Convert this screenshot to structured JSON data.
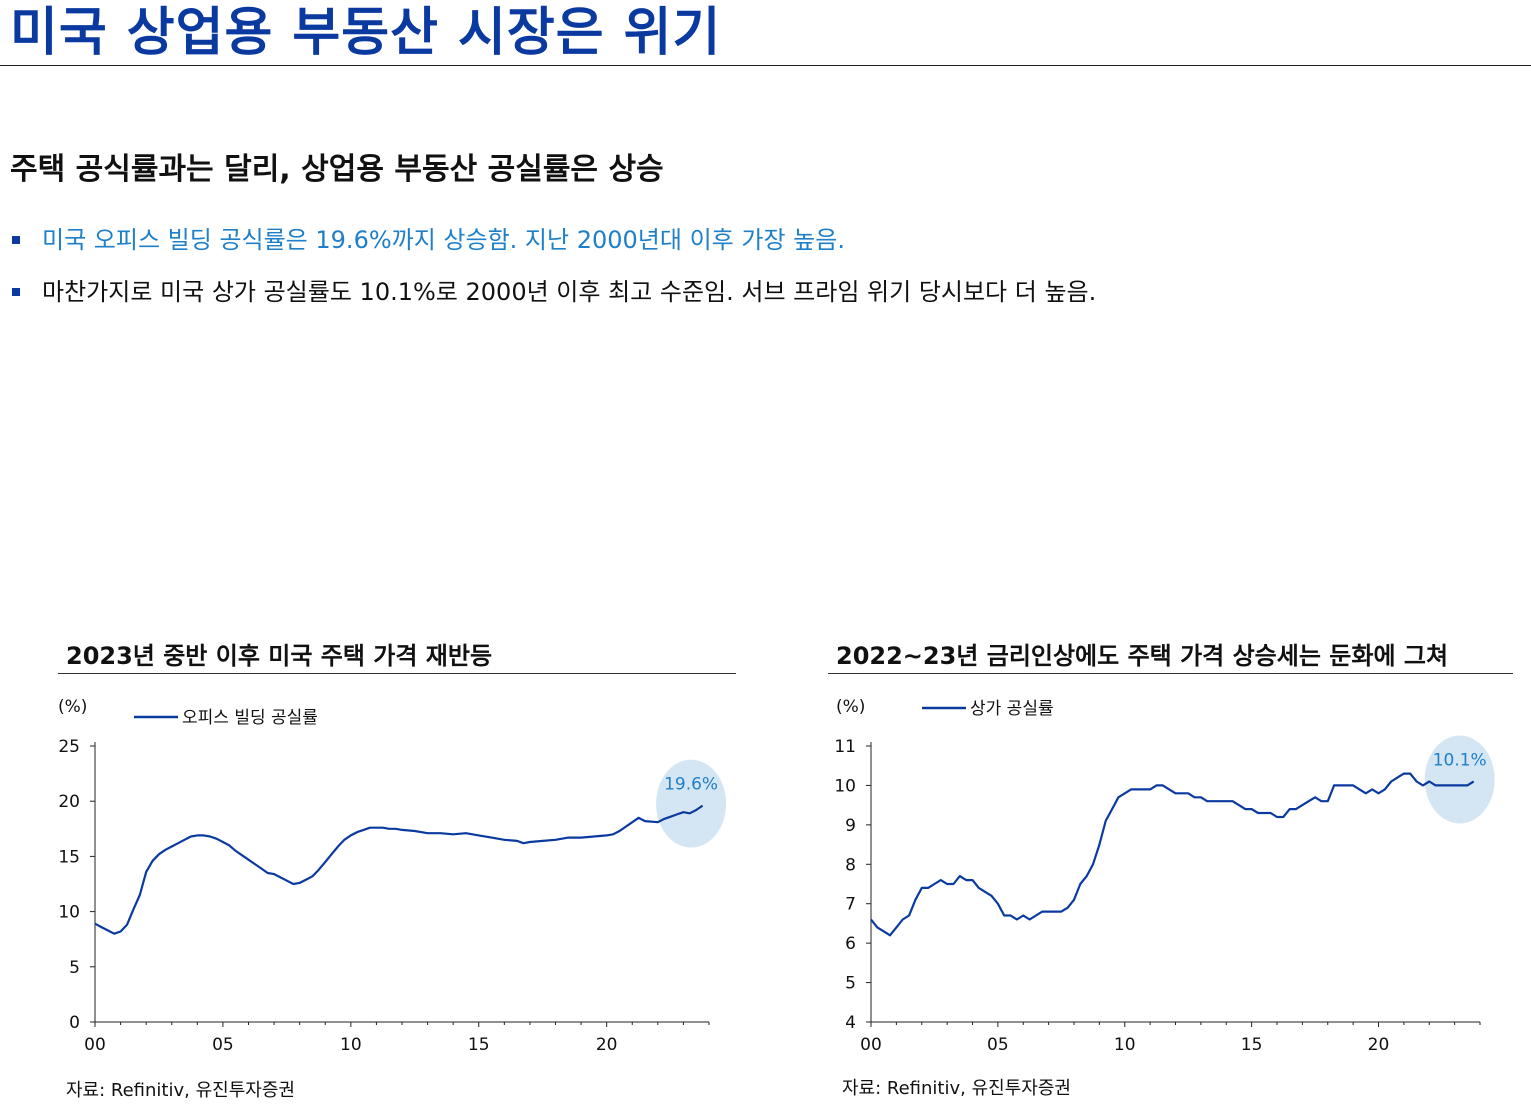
{
  "page": {
    "title": "미국 상업용 부동산 시장은 위기",
    "headline": "주택 공식률과는 달리, 상업용 부동산 공실률은 상승",
    "bullets": [
      {
        "text": "미국 오피스 빌딩 공식률은 19.6%까지 상승함. 지난 2000년대 이후 가장 높음.",
        "color": "#1f7fc8"
      },
      {
        "text": "마찬가지로 미국 상가 공실률도 10.1%로 2000년 이후 최고 수준임. 서브 프라임 위기 당시보다 더 높음.",
        "color": "#111111"
      }
    ]
  },
  "colors": {
    "title": "#0a3aa0",
    "line": "#0a3aa0",
    "highlight_fill": "#cfe3f3",
    "highlight_text": "#1f7fc8"
  },
  "chart_data": [
    {
      "type": "line",
      "title": "2023년 중반 이후 미국 주택 가격 재반등",
      "ylabel": "(%)",
      "xlabel": "",
      "xlim": [
        0,
        24
      ],
      "ylim": [
        0,
        25
      ],
      "xticks": [
        0,
        5,
        10,
        15,
        20
      ],
      "xtick_labels": [
        "00",
        "05",
        "10",
        "15",
        "20"
      ],
      "yticks": [
        0,
        5,
        10,
        15,
        20,
        25
      ],
      "legend": "top-left",
      "highlight": {
        "x": 23.3,
        "y": 19.6,
        "label": "19.6%"
      },
      "source": "자료: Refinitiv, 유진투자증권",
      "series": [
        {
          "name": "오피스 빌딩 공실률",
          "points": [
            [
              0.0,
              8.9
            ],
            [
              0.25,
              8.6
            ],
            [
              0.5,
              8.3
            ],
            [
              0.75,
              8.0
            ],
            [
              1.0,
              8.2
            ],
            [
              1.25,
              8.8
            ],
            [
              1.5,
              10.2
            ],
            [
              1.75,
              11.5
            ],
            [
              2.0,
              13.6
            ],
            [
              2.25,
              14.6
            ],
            [
              2.5,
              15.2
            ],
            [
              2.75,
              15.6
            ],
            [
              3.0,
              15.9
            ],
            [
              3.25,
              16.2
            ],
            [
              3.5,
              16.5
            ],
            [
              3.75,
              16.8
            ],
            [
              4.0,
              16.9
            ],
            [
              4.25,
              16.9
            ],
            [
              4.5,
              16.8
            ],
            [
              4.75,
              16.6
            ],
            [
              5.0,
              16.3
            ],
            [
              5.25,
              16.0
            ],
            [
              5.5,
              15.5
            ],
            [
              5.75,
              15.1
            ],
            [
              6.0,
              14.7
            ],
            [
              6.25,
              14.3
            ],
            [
              6.5,
              13.9
            ],
            [
              6.75,
              13.5
            ],
            [
              7.0,
              13.4
            ],
            [
              7.25,
              13.1
            ],
            [
              7.5,
              12.8
            ],
            [
              7.75,
              12.5
            ],
            [
              8.0,
              12.6
            ],
            [
              8.25,
              12.9
            ],
            [
              8.5,
              13.2
            ],
            [
              8.75,
              13.8
            ],
            [
              9.0,
              14.5
            ],
            [
              9.25,
              15.2
            ],
            [
              9.5,
              15.9
            ],
            [
              9.75,
              16.5
            ],
            [
              10.0,
              16.9
            ],
            [
              10.25,
              17.2
            ],
            [
              10.5,
              17.4
            ],
            [
              10.75,
              17.6
            ],
            [
              11.0,
              17.6
            ],
            [
              11.25,
              17.6
            ],
            [
              11.5,
              17.5
            ],
            [
              11.75,
              17.5
            ],
            [
              12.0,
              17.4
            ],
            [
              12.5,
              17.3
            ],
            [
              13.0,
              17.1
            ],
            [
              13.5,
              17.1
            ],
            [
              14.0,
              17.0
            ],
            [
              14.5,
              17.1
            ],
            [
              15.0,
              16.9
            ],
            [
              15.5,
              16.7
            ],
            [
              16.0,
              16.5
            ],
            [
              16.5,
              16.4
            ],
            [
              16.75,
              16.2
            ],
            [
              17.0,
              16.3
            ],
            [
              17.5,
              16.4
            ],
            [
              18.0,
              16.5
            ],
            [
              18.5,
              16.7
            ],
            [
              19.0,
              16.7
            ],
            [
              19.5,
              16.8
            ],
            [
              20.0,
              16.9
            ],
            [
              20.25,
              17.0
            ],
            [
              20.5,
              17.3
            ],
            [
              20.75,
              17.7
            ],
            [
              21.0,
              18.1
            ],
            [
              21.25,
              18.5
            ],
            [
              21.5,
              18.2
            ],
            [
              22.0,
              18.1
            ],
            [
              22.25,
              18.4
            ],
            [
              22.5,
              18.6
            ],
            [
              22.75,
              18.8
            ],
            [
              23.0,
              19.0
            ],
            [
              23.25,
              18.9
            ],
            [
              23.5,
              19.2
            ],
            [
              23.75,
              19.6
            ]
          ]
        }
      ]
    },
    {
      "type": "line",
      "title": "2022~23년 금리인상에도 주택 가격 상승세는 둔화에 그쳐",
      "ylabel": "(%)",
      "xlabel": "",
      "xlim": [
        0,
        24
      ],
      "ylim": [
        4,
        11
      ],
      "xticks": [
        0,
        5,
        10,
        15,
        20
      ],
      "xtick_labels": [
        "00",
        "05",
        "10",
        "15",
        "20"
      ],
      "yticks": [
        4,
        5,
        6,
        7,
        8,
        9,
        10,
        11
      ],
      "legend": "top-left",
      "highlight": {
        "x": 23.2,
        "y": 10.1,
        "label": "10.1%"
      },
      "source": "자료: Refinitiv, 유진투자증권",
      "series": [
        {
          "name": "상가 공실률",
          "points": [
            [
              0.0,
              6.6
            ],
            [
              0.25,
              6.4
            ],
            [
              0.5,
              6.3
            ],
            [
              0.75,
              6.2
            ],
            [
              1.0,
              6.4
            ],
            [
              1.25,
              6.6
            ],
            [
              1.5,
              6.7
            ],
            [
              1.75,
              7.1
            ],
            [
              2.0,
              7.4
            ],
            [
              2.25,
              7.4
            ],
            [
              2.5,
              7.5
            ],
            [
              2.75,
              7.6
            ],
            [
              3.0,
              7.5
            ],
            [
              3.25,
              7.5
            ],
            [
              3.5,
              7.7
            ],
            [
              3.75,
              7.6
            ],
            [
              4.0,
              7.6
            ],
            [
              4.25,
              7.4
            ],
            [
              4.5,
              7.3
            ],
            [
              4.75,
              7.2
            ],
            [
              5.0,
              7.0
            ],
            [
              5.25,
              6.7
            ],
            [
              5.5,
              6.7
            ],
            [
              5.75,
              6.6
            ],
            [
              6.0,
              6.7
            ],
            [
              6.25,
              6.6
            ],
            [
              6.5,
              6.7
            ],
            [
              6.75,
              6.8
            ],
            [
              7.0,
              6.8
            ],
            [
              7.5,
              6.8
            ],
            [
              7.75,
              6.9
            ],
            [
              8.0,
              7.1
            ],
            [
              8.25,
              7.5
            ],
            [
              8.5,
              7.7
            ],
            [
              8.75,
              8.0
            ],
            [
              9.0,
              8.5
            ],
            [
              9.25,
              9.1
            ],
            [
              9.5,
              9.4
            ],
            [
              9.75,
              9.7
            ],
            [
              10.0,
              9.8
            ],
            [
              10.25,
              9.9
            ],
            [
              10.5,
              9.9
            ],
            [
              11.0,
              9.9
            ],
            [
              11.25,
              10.0
            ],
            [
              11.5,
              10.0
            ],
            [
              11.75,
              9.9
            ],
            [
              12.0,
              9.8
            ],
            [
              12.5,
              9.8
            ],
            [
              12.75,
              9.7
            ],
            [
              13.0,
              9.7
            ],
            [
              13.25,
              9.6
            ],
            [
              14.0,
              9.6
            ],
            [
              14.25,
              9.6
            ],
            [
              14.5,
              9.5
            ],
            [
              14.75,
              9.4
            ],
            [
              15.0,
              9.4
            ],
            [
              15.25,
              9.3
            ],
            [
              15.75,
              9.3
            ],
            [
              16.0,
              9.2
            ],
            [
              16.25,
              9.2
            ],
            [
              16.5,
              9.4
            ],
            [
              16.75,
              9.4
            ],
            [
              17.0,
              9.5
            ],
            [
              17.25,
              9.6
            ],
            [
              17.5,
              9.7
            ],
            [
              17.75,
              9.6
            ],
            [
              18.0,
              9.6
            ],
            [
              18.25,
              10.0
            ],
            [
              19.0,
              10.0
            ],
            [
              19.25,
              9.9
            ],
            [
              19.5,
              9.8
            ],
            [
              19.75,
              9.9
            ],
            [
              20.0,
              9.8
            ],
            [
              20.25,
              9.9
            ],
            [
              20.5,
              10.1
            ],
            [
              20.75,
              10.2
            ],
            [
              21.0,
              10.3
            ],
            [
              21.25,
              10.3
            ],
            [
              21.5,
              10.1
            ],
            [
              21.75,
              10.0
            ],
            [
              22.0,
              10.1
            ],
            [
              22.25,
              10.0
            ],
            [
              23.0,
              10.0
            ],
            [
              23.25,
              10.0
            ],
            [
              23.5,
              10.0
            ],
            [
              23.75,
              10.1
            ]
          ]
        }
      ]
    }
  ]
}
